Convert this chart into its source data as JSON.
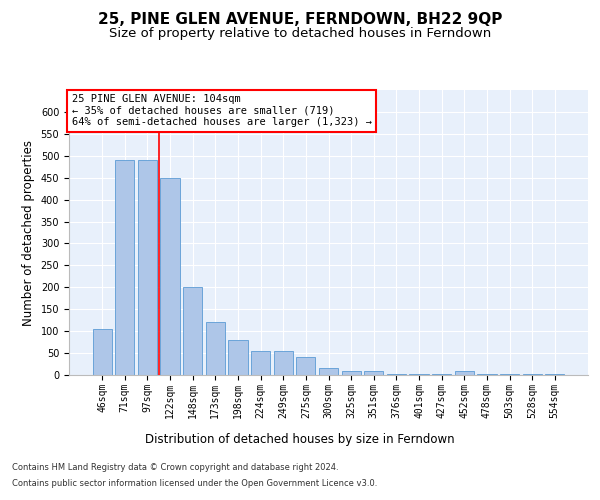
{
  "title": "25, PINE GLEN AVENUE, FERNDOWN, BH22 9QP",
  "subtitle": "Size of property relative to detached houses in Ferndown",
  "xlabel": "Distribution of detached houses by size in Ferndown",
  "ylabel": "Number of detached properties",
  "categories": [
    "46sqm",
    "71sqm",
    "97sqm",
    "122sqm",
    "148sqm",
    "173sqm",
    "198sqm",
    "224sqm",
    "249sqm",
    "275sqm",
    "300sqm",
    "325sqm",
    "351sqm",
    "376sqm",
    "401sqm",
    "427sqm",
    "452sqm",
    "478sqm",
    "503sqm",
    "528sqm",
    "554sqm"
  ],
  "values": [
    105,
    490,
    490,
    450,
    200,
    120,
    80,
    55,
    55,
    40,
    15,
    10,
    10,
    3,
    3,
    3,
    8,
    3,
    3,
    3,
    2
  ],
  "bar_color": "#aec6e8",
  "bar_edge_color": "#5b9bd5",
  "red_line_index": 2,
  "red_line_label": "25 PINE GLEN AVENUE: 104sqm",
  "annotation_line1": "← 35% of detached houses are smaller (719)",
  "annotation_line2": "64% of semi-detached houses are larger (1,323) →",
  "ylim": [
    0,
    650
  ],
  "yticks": [
    0,
    50,
    100,
    150,
    200,
    250,
    300,
    350,
    400,
    450,
    500,
    550,
    600
  ],
  "bg_color": "#e8f0fb",
  "footer1": "Contains HM Land Registry data © Crown copyright and database right 2024.",
  "footer2": "Contains public sector information licensed under the Open Government Licence v3.0.",
  "title_fontsize": 11,
  "subtitle_fontsize": 9.5,
  "axis_label_fontsize": 8.5,
  "tick_fontsize": 7,
  "ann_fontsize": 7.5
}
